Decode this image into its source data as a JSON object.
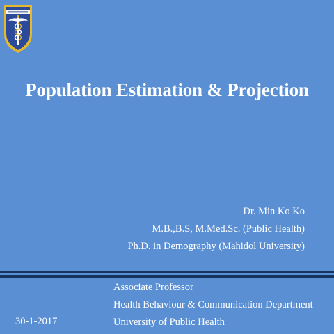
{
  "slide": {
    "logo": {
      "icon": "university-crest-caduceus-icon",
      "banner_text": "ပြည်သူ့ကျန်းမာရေး",
      "colors": {
        "shield_blue": "#2b4a9a",
        "border_gold": "#e6b92c",
        "staff": "#ffffff"
      }
    },
    "title": "Population Estimation & Projection",
    "presenter": {
      "name": "Dr. Min Ko Ko",
      "degrees": "M.B.,B.S,  M.Med.Sc. (Public Health)",
      "phd": "Ph.D. in Demography (Mahidol University)"
    },
    "date": "30-1-2017",
    "affiliation": {
      "position": "Associate Professor",
      "department": "Health Behaviour & Communication Department",
      "university": "University of Public Health"
    },
    "colors": {
      "background": "#5b8fd4",
      "rule": "#17335f",
      "text": "#ffffff"
    }
  }
}
